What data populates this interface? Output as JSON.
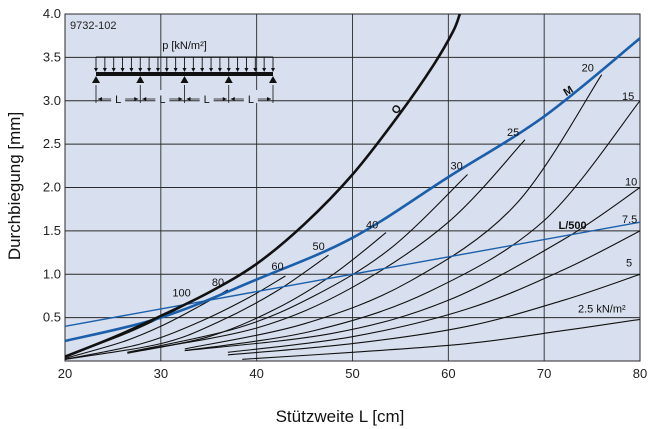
{
  "chart_data": {
    "type": "line",
    "code": "9732-102",
    "xlabel": "Stützweite L [cm]",
    "ylabel": "Durchbiegung [mm]",
    "xlim": [
      20,
      80
    ],
    "ylim": [
      0,
      4.0
    ],
    "xticks": [
      "20",
      "30",
      "40",
      "50",
      "60",
      "70",
      "80"
    ],
    "yticks": [
      "0.5",
      "1.0",
      "1.5",
      "2.0",
      "2.5",
      "3.0",
      "3.5",
      "4.0"
    ],
    "grid": true,
    "colors": {
      "background": "#d8dfee",
      "grid": "#2a2a2a",
      "blue": "#1b5fab",
      "black": "#111111"
    },
    "inset": {
      "load_label": "p [kN/m²]",
      "span_label": "L",
      "spans": 4
    },
    "series_load_curves": [
      {
        "label": "100",
        "x": [
          20,
          26,
          30,
          33.5
        ],
        "y": [
          0.05,
          0.3,
          0.5,
          0.7
        ]
      },
      {
        "label": "80",
        "x": [
          20,
          26,
          30,
          34,
          37
        ],
        "y": [
          0.03,
          0.22,
          0.4,
          0.63,
          0.82
        ]
      },
      {
        "label": "60",
        "x": [
          20,
          28,
          34,
          39,
          43
        ],
        "y": [
          0.02,
          0.2,
          0.45,
          0.72,
          0.98
        ]
      },
      {
        "label": "50",
        "x": [
          20,
          30,
          36,
          42,
          47.5
        ],
        "y": [
          0.02,
          0.2,
          0.45,
          0.8,
          1.22
        ]
      },
      {
        "label": "40",
        "x": [
          26.5,
          35,
          42,
          48,
          53.5
        ],
        "y": [
          0.09,
          0.28,
          0.6,
          1.0,
          1.48
        ]
      },
      {
        "label": "30",
        "x": [
          26.5,
          38,
          46,
          54,
          62
        ],
        "y": [
          0.1,
          0.38,
          0.75,
          1.3,
          2.15
        ]
      },
      {
        "label": "25",
        "x": [
          27,
          40,
          50,
          60,
          68
        ],
        "y": [
          0.11,
          0.38,
          0.85,
          1.6,
          2.55
        ]
      },
      {
        "label": "20",
        "x": [
          32.5,
          45,
          56,
          67,
          76
        ],
        "y": [
          0.14,
          0.43,
          0.92,
          1.8,
          3.3
        ]
      },
      {
        "label": "15",
        "x": [
          32.5,
          46,
          58,
          70,
          80
        ],
        "y": [
          0.12,
          0.35,
          0.8,
          1.62,
          3.0
        ]
      },
      {
        "label": "10",
        "x": [
          32.5,
          48,
          60,
          72,
          80
        ],
        "y": [
          0.12,
          0.32,
          0.7,
          1.4,
          2.0
        ]
      },
      {
        "label": "7.5",
        "x": [
          37,
          50,
          62,
          72,
          80
        ],
        "y": [
          0.1,
          0.28,
          0.6,
          1.05,
          1.5
        ]
      },
      {
        "label": "5",
        "x": [
          37,
          50,
          62,
          72,
          80
        ],
        "y": [
          0.07,
          0.2,
          0.4,
          0.7,
          1.0
        ]
      },
      {
        "label": "2.5 kN/m²",
        "x": [
          38.5,
          50,
          62,
          72,
          80
        ],
        "y": [
          0.02,
          0.1,
          0.2,
          0.35,
          0.48
        ]
      }
    ],
    "series_Q": {
      "label": "Q",
      "x": [
        20,
        25,
        30,
        35,
        40,
        45,
        50,
        55,
        58.5,
        60.5,
        61.2
      ],
      "y": [
        0.05,
        0.27,
        0.52,
        0.79,
        1.12,
        1.58,
        2.15,
        2.86,
        3.42,
        3.8,
        4.0
      ]
    },
    "series_M": {
      "label": "M",
      "x": [
        20,
        30,
        40,
        50,
        60,
        70,
        80
      ],
      "y": [
        0.23,
        0.5,
        0.94,
        1.42,
        2.12,
        2.82,
        3.72
      ]
    },
    "series_L500": {
      "label": "L/500",
      "x": [
        20,
        80
      ],
      "y": [
        0.4,
        1.6
      ]
    }
  }
}
